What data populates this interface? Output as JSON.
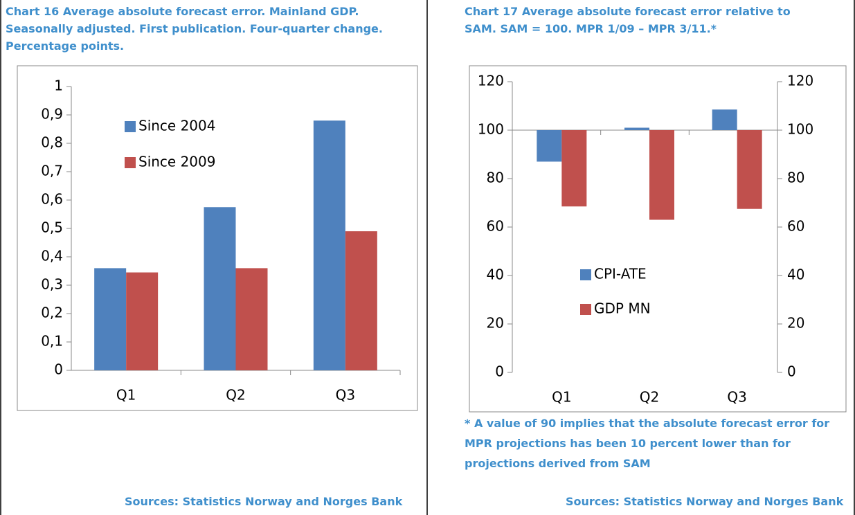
{
  "chart_data": [
    {
      "type": "bar",
      "title": "Chart 16 Average absolute forecast error. Mainland GDP. Seasonally adjusted. First publication. Four-quarter change. Percentage points.",
      "categories": [
        "Q1",
        "Q2",
        "Q3"
      ],
      "series": [
        {
          "name": "Since 2004",
          "color": "#4f81bd",
          "values": [
            0.36,
            0.575,
            0.88
          ]
        },
        {
          "name": "Since 2009",
          "color": "#c0504d",
          "values": [
            0.345,
            0.36,
            0.49
          ]
        }
      ],
      "ylim": [
        0,
        1
      ],
      "yticks": [
        0,
        {
          "value": 0.1,
          "label": "0,1"
        },
        {
          "value": 0.2,
          "label": "0,2"
        },
        {
          "value": 0.3,
          "label": "0,3"
        },
        {
          "value": 0.4,
          "label": "0,4"
        },
        {
          "value": 0.5,
          "label": "0,5"
        },
        {
          "value": 0.6,
          "label": "0,6"
        },
        {
          "value": 0.7,
          "label": "0,7"
        },
        {
          "value": 0.8,
          "label": "0,8"
        },
        {
          "value": 0.9,
          "label": "0,9"
        },
        1
      ],
      "sources": "Sources: Statistics Norway and Norges Bank"
    },
    {
      "type": "bar",
      "title": "Chart 17 Average absolute forecast error relative to SAM. SAM = 100. MPR 1/09 – MPR 3/11.*",
      "categories": [
        "Q1",
        "Q2",
        "Q3"
      ],
      "series": [
        {
          "name": "CPI-ATE",
          "color": "#4f81bd",
          "values": [
            87,
            101,
            108.5
          ]
        },
        {
          "name": "GDP MN",
          "color": "#c0504d",
          "values": [
            68.5,
            63,
            67.5
          ]
        }
      ],
      "x_axis_crossing": 100,
      "ylim": [
        0,
        120
      ],
      "yticks": [
        0,
        20,
        40,
        60,
        80,
        100,
        120
      ],
      "y2lim": [
        0,
        120
      ],
      "y2ticks": [
        0,
        20,
        40,
        60,
        80,
        100,
        120
      ],
      "footnote": "* A value of 90 implies that the absolute forecast error for MPR projections has been 10 percent lower than for projections derived from SAM",
      "sources": "Sources: Statistics Norway and Norges Bank"
    }
  ]
}
